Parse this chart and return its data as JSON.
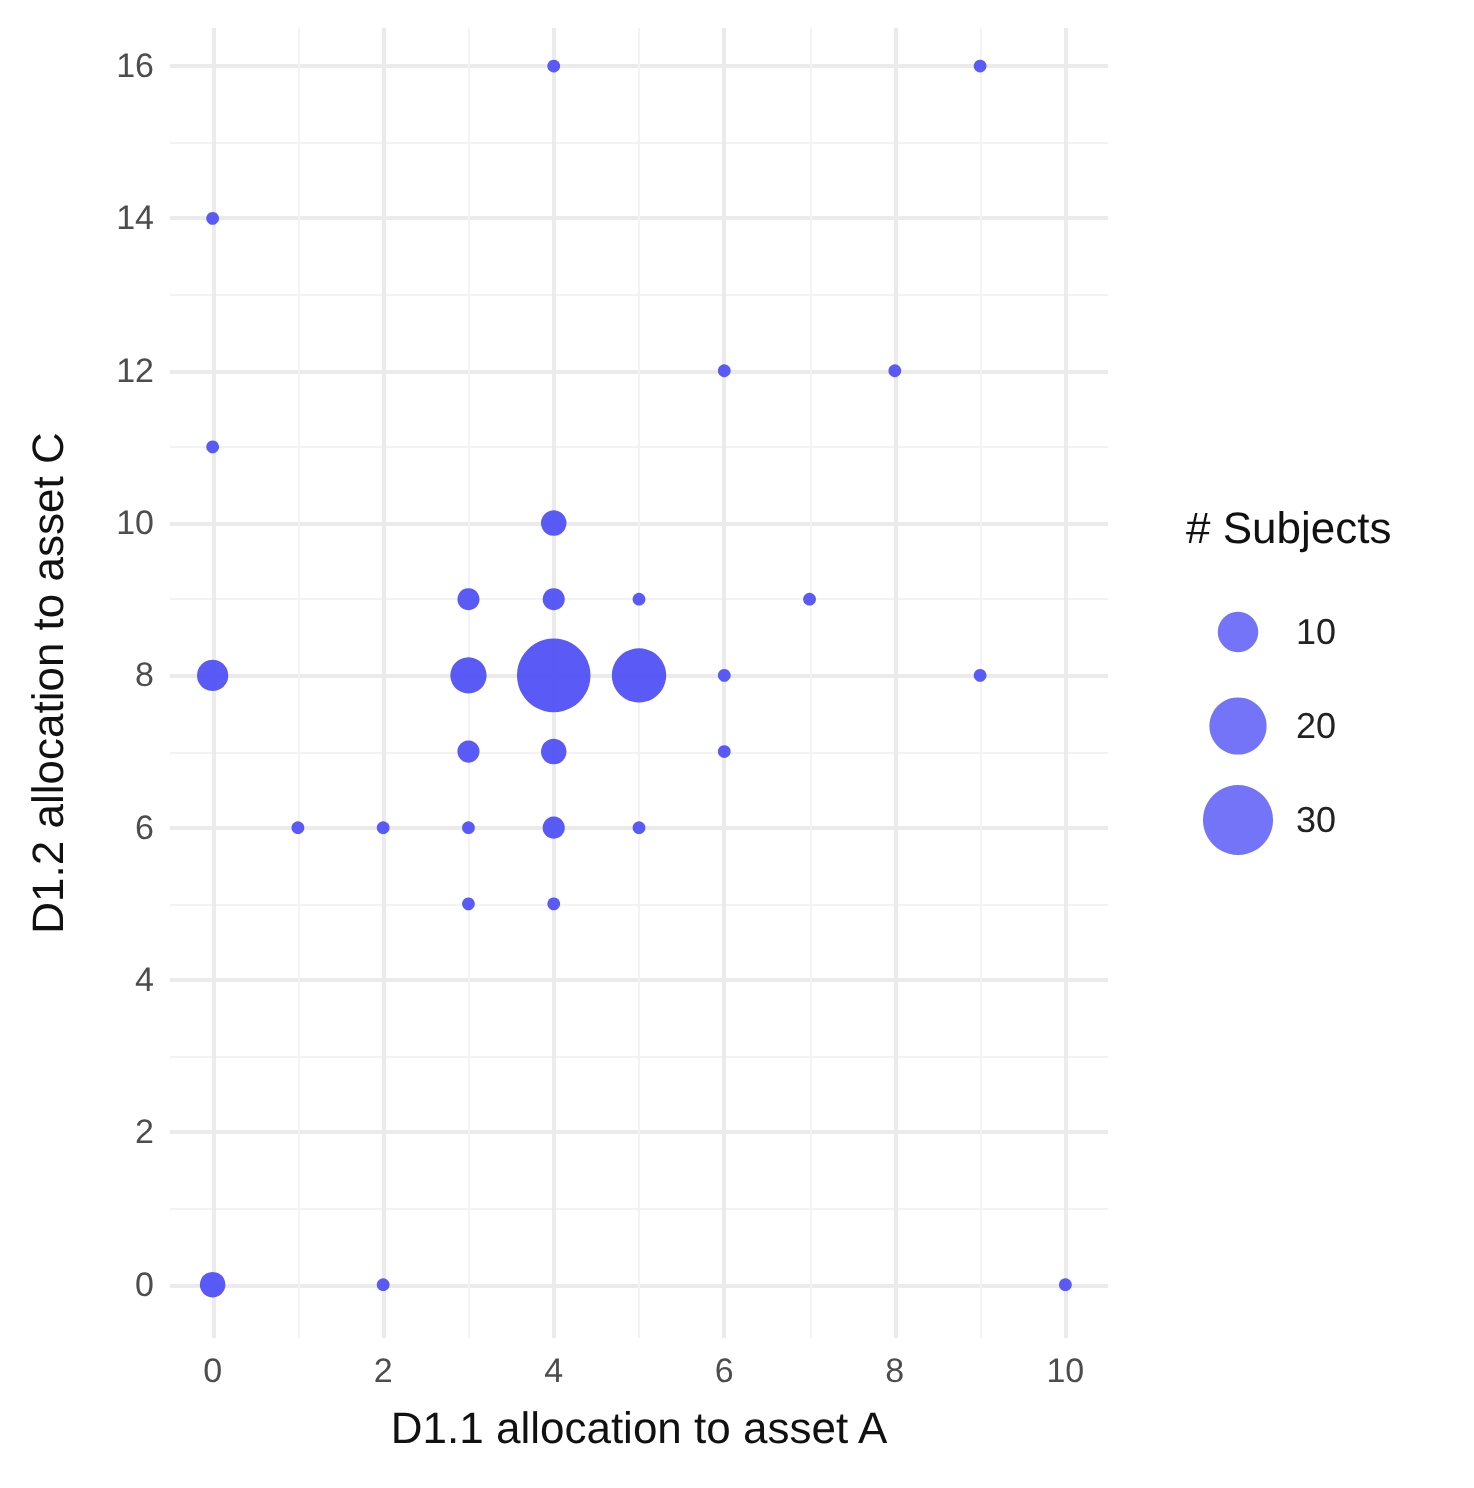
{
  "chart_data": {
    "type": "bubble",
    "xlabel": "D1.1 allocation to asset A",
    "ylabel": "D1.2 allocation to asset C",
    "legend_title": "# Subjects",
    "grid": true,
    "xlim": [
      -0.5,
      10.5
    ],
    "xticks": [
      0,
      2,
      4,
      6,
      8,
      10
    ],
    "ylim": [
      -0.7,
      16.5
    ],
    "yticks": [
      0,
      2,
      4,
      6,
      8,
      10,
      12,
      14,
      16
    ],
    "size_legend": [
      10,
      20,
      30
    ],
    "series": [
      {
        "color": "#5151f7",
        "x": [
          4,
          9,
          0,
          0,
          6,
          8,
          4,
          3,
          4,
          5,
          7,
          0,
          3,
          4,
          5,
          6,
          9,
          3,
          4,
          6,
          1,
          2,
          3,
          4,
          5,
          3,
          4,
          0,
          2,
          10
        ],
        "values": [
          16,
          16,
          14,
          11,
          12,
          12,
          10,
          9,
          9,
          9,
          9,
          8,
          8,
          8,
          8,
          8,
          8,
          7,
          7,
          7,
          6,
          6,
          6,
          6,
          6,
          5,
          5,
          0,
          0,
          0
        ],
        "sizes": [
          1,
          1,
          1,
          1,
          1,
          1,
          4,
          3,
          3,
          1,
          1,
          6,
          8,
          33,
          18,
          1,
          1,
          3,
          4,
          1,
          1,
          1,
          1,
          3,
          1,
          1,
          1,
          4,
          1,
          1
        ]
      }
    ]
  }
}
